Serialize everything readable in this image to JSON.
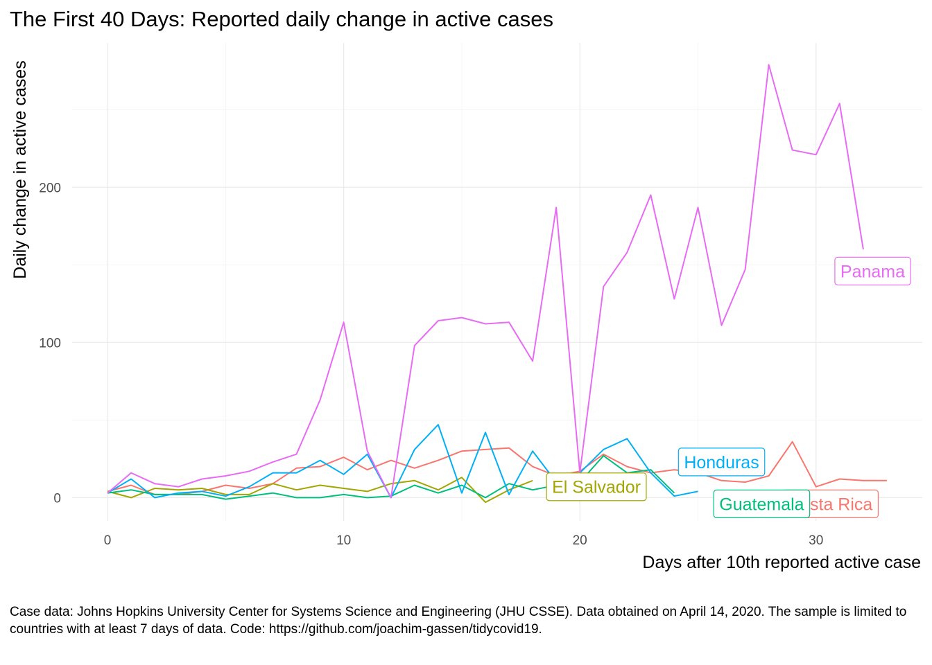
{
  "title": "The First 40 Days: Reported daily change in active cases",
  "caption": "Case data: Johns Hopkins University Center for Systems Science and Engineering (JHU CSSE). Data obtained on April 14, 2020. The sample is limited to countries with at least 7 days of data. Code: https://github.com/joachim-gassen/tidycovid19.",
  "chart_data": {
    "type": "line",
    "title": "The First 40 Days: Reported daily change in active cases",
    "xlabel": "Days after 10th reported active case",
    "ylabel": "Daily change in active cases",
    "xlim": [
      -1.5,
      34.5
    ],
    "ylim": [
      -15,
      293
    ],
    "x_ticks": [
      0,
      10,
      20,
      30
    ],
    "x_tick_labels": [
      "0",
      "10",
      "20",
      "30"
    ],
    "y_ticks": [
      0,
      100,
      200
    ],
    "y_tick_labels": [
      "0",
      "100",
      "200"
    ],
    "grid": true,
    "legend": "direct labels at line ends",
    "series": [
      {
        "name": "Costa Rica",
        "color": "#F8766D",
        "x": [
          0,
          1,
          2,
          3,
          4,
          5,
          6,
          7,
          8,
          9,
          10,
          11,
          12,
          13,
          14,
          15,
          16,
          17,
          18,
          19,
          20,
          21,
          22,
          23,
          24,
          25,
          26,
          27,
          28,
          29,
          30,
          31,
          32,
          33
        ],
        "y": [
          4,
          8,
          2,
          2,
          4,
          8,
          6,
          9,
          19,
          20,
          26,
          18,
          24,
          19,
          24,
          30,
          31,
          32,
          20,
          14,
          17,
          28,
          20,
          16,
          18,
          16,
          11,
          10,
          14,
          36,
          7,
          12,
          11,
          11
        ],
        "label": {
          "text": "Costa Rica",
          "x": 30.6,
          "y": -4
        }
      },
      {
        "name": "El Salvador",
        "color": "#A3A500",
        "x": [
          0,
          1,
          2,
          3,
          4,
          5,
          6,
          7,
          8,
          9,
          10,
          11,
          12,
          13,
          14,
          15,
          16,
          17,
          18
        ],
        "y": [
          4,
          0,
          6,
          5,
          6,
          2,
          2,
          9,
          5,
          8,
          6,
          4,
          9,
          11,
          5,
          13,
          -3,
          5,
          11
        ],
        "label": {
          "text": "El Salvador",
          "x": 20.7,
          "y": 7
        }
      },
      {
        "name": "Guatemala",
        "color": "#00BF7D",
        "x": [
          0,
          1,
          2,
          3,
          4,
          5,
          6,
          7,
          8,
          9,
          10,
          11,
          12,
          13,
          14,
          15,
          16,
          17,
          18,
          19,
          20,
          21,
          22,
          23,
          24
        ],
        "y": [
          3,
          5,
          2,
          2,
          2,
          -1,
          1,
          3,
          0,
          0,
          2,
          0,
          1,
          8,
          3,
          8,
          0,
          9,
          5,
          8,
          10,
          27,
          16,
          18,
          3
        ],
        "label": {
          "text": "Guatemala",
          "x": 27.7,
          "y": -4
        }
      },
      {
        "name": "Honduras",
        "color": "#00B0F6",
        "x": [
          0,
          1,
          2,
          3,
          4,
          5,
          6,
          7,
          8,
          9,
          10,
          11,
          12,
          13,
          14,
          15,
          16,
          17,
          18,
          19,
          20,
          21,
          22,
          23,
          24,
          25
        ],
        "y": [
          3,
          12,
          0,
          3,
          4,
          1,
          7,
          16,
          16,
          24,
          15,
          28,
          0,
          31,
          47,
          3,
          42,
          2,
          30,
          10,
          16,
          31,
          38,
          16,
          1,
          4
        ],
        "label": {
          "text": "Honduras",
          "x": 26.0,
          "y": 23
        }
      },
      {
        "name": "Panama",
        "color": "#E76BF3",
        "x": [
          0,
          1,
          2,
          3,
          4,
          5,
          6,
          7,
          8,
          9,
          10,
          11,
          12,
          13,
          14,
          15,
          16,
          17,
          18,
          19,
          20,
          21,
          22,
          23,
          24,
          25,
          26,
          27,
          28,
          29,
          30,
          31,
          32
        ],
        "y": [
          3,
          16,
          9,
          7,
          12,
          14,
          17,
          23,
          28,
          63,
          113,
          30,
          0,
          98,
          114,
          116,
          112,
          113,
          88,
          187,
          16,
          136,
          158,
          195,
          128,
          187,
          111,
          147,
          279,
          224,
          221,
          254,
          160
        ],
        "label": {
          "text": "Panama",
          "x": 32.4,
          "y": 146
        }
      }
    ]
  }
}
